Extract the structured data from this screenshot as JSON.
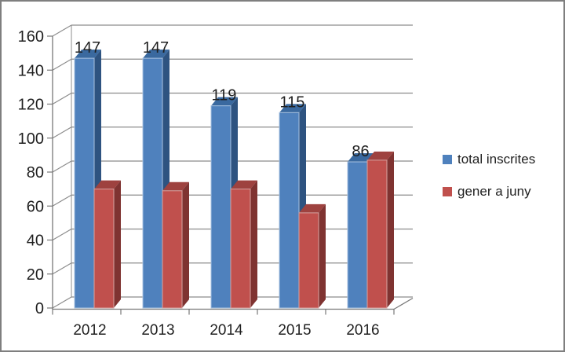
{
  "frame": {
    "border_color": "#7f7f7f",
    "background_color": "#ffffff"
  },
  "chart_data": {
    "type": "bar",
    "style": "3d-clustered-column",
    "title": "",
    "xlabel": "",
    "ylabel": "",
    "categories": [
      "2012",
      "2013",
      "2014",
      "2015",
      "2016"
    ],
    "series": [
      {
        "name": "total inscrites",
        "values": [
          147,
          147,
          119,
          115,
          86
        ],
        "data_labels": [
          "147",
          "147",
          "119",
          "115",
          "86"
        ],
        "show_labels": true,
        "color": "#4f81bd",
        "color_side": "#2e5380",
        "color_top": "#3a699f",
        "color_edge": "#a9c2e0"
      },
      {
        "name": "gener a juny",
        "values": [
          70,
          69,
          70,
          56,
          87
        ],
        "data_labels": [],
        "show_labels": false,
        "color": "#c0504d",
        "color_side": "#7f3331",
        "color_top": "#9e423f",
        "color_edge": "#d6a3a1"
      }
    ],
    "ylim": [
      0,
      160
    ],
    "ytick_step": 20,
    "yticks": [
      0,
      20,
      40,
      60,
      80,
      100,
      120,
      140,
      160
    ],
    "grid": true,
    "gridline_color": "#8c8c8c",
    "axis_color": "#787878",
    "text_color": "#1f1f1f",
    "legend_position": "right"
  }
}
